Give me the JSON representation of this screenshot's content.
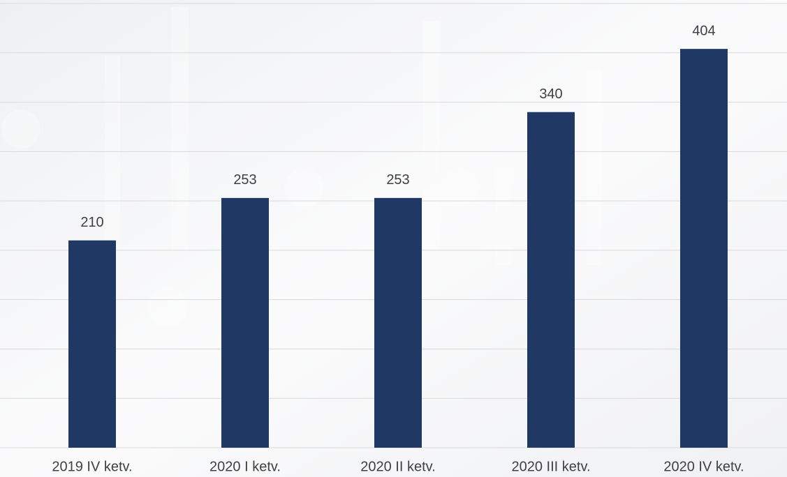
{
  "chart_data": {
    "type": "bar",
    "categories": [
      "2019 IV ketv.",
      "2020 I ketv.",
      "2020 II ketv.",
      "2020 III ketv.",
      "2020 IV ketv."
    ],
    "values": [
      210,
      253,
      253,
      340,
      404
    ],
    "color": "#203864",
    "ylim": [
      0,
      450
    ],
    "yticks": [
      0,
      50,
      100,
      150,
      200,
      250,
      300,
      350,
      400,
      450
    ],
    "grid": true
  }
}
